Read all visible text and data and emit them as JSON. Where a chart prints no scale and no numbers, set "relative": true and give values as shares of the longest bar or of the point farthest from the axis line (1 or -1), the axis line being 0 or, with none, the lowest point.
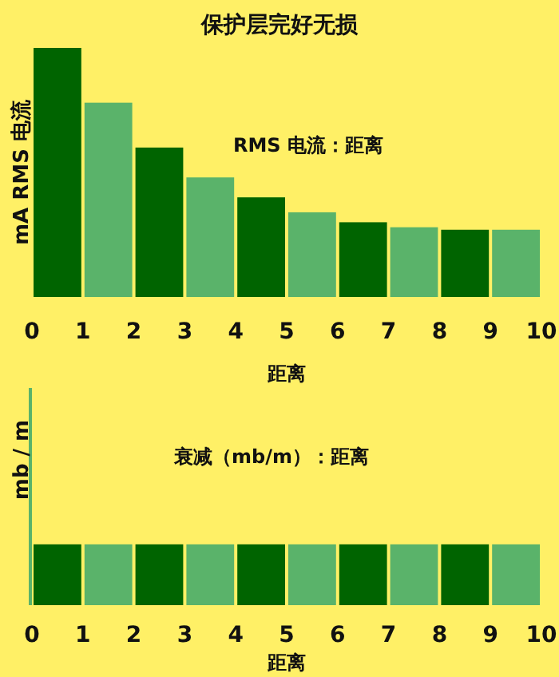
{
  "chart_data": [
    {
      "type": "bar",
      "title": "保护层完好无损",
      "ylabel": "mA RMS 电流",
      "xlabel": "距离",
      "annotations": [
        "RMS 电流：距离"
      ],
      "relative": true,
      "x": [
        0.5,
        1.5,
        2.5,
        3.5,
        4.5,
        5.5,
        6.5,
        7.5,
        8.5,
        9.5
      ],
      "xlim": [
        0,
        10
      ],
      "xticks": [
        0,
        1,
        2,
        3,
        4,
        5,
        6,
        7,
        8,
        9,
        10
      ],
      "values": [
        1,
        0.78,
        0.6,
        0.48,
        0.4,
        0.34,
        0.3,
        0.28,
        0.27,
        0.27
      ],
      "colors": [
        "#006400",
        "#5ab36a",
        "#006400",
        "#5ab36a",
        "#006400",
        "#5ab36a",
        "#006400",
        "#5ab36a",
        "#006400",
        "#5ab36a"
      ]
    },
    {
      "type": "bar",
      "ylabel": "mb / m",
      "xlabel": "距离",
      "annotations": [
        "衰减（mb/m）：距离"
      ],
      "relative": true,
      "x": [
        0.5,
        1.5,
        2.5,
        3.5,
        4.5,
        5.5,
        6.5,
        7.5,
        8.5,
        9.5
      ],
      "xlim": [
        0,
        10
      ],
      "xticks": [
        0,
        1,
        2,
        3,
        4,
        5,
        6,
        7,
        8,
        9,
        10
      ],
      "values": [
        1,
        1,
        1,
        1,
        1,
        1,
        1,
        1,
        1,
        1
      ],
      "colors": [
        "#006400",
        "#5ab36a",
        "#006400",
        "#5ab36a",
        "#006400",
        "#5ab36a",
        "#006400",
        "#5ab36a",
        "#006400",
        "#5ab36a"
      ]
    }
  ]
}
